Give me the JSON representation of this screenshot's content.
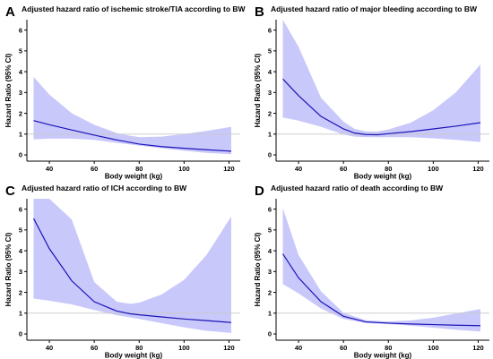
{
  "chart_data": [
    {
      "type": "line",
      "panel": "A",
      "title": "Adjusted hazard ratio of ischemic stroke/TIA according to BW",
      "xlabel": "Body weight (kg)",
      "ylabel": "Hazard Ratio (95% CI)",
      "xlim": [
        30,
        125
      ],
      "ylim": [
        -0.3,
        6.5
      ],
      "xticks": [
        40,
        60,
        80,
        100,
        120
      ],
      "yticks": [
        0,
        1,
        2,
        3,
        4,
        5,
        6
      ],
      "reference_line": 1,
      "x": [
        33,
        40,
        50,
        60,
        70,
        76,
        80,
        90,
        100,
        110,
        121
      ],
      "hr": [
        1.65,
        1.45,
        1.2,
        0.95,
        0.72,
        0.6,
        0.52,
        0.4,
        0.32,
        0.25,
        0.18
      ],
      "ci_lower": [
        0.75,
        0.78,
        0.78,
        0.72,
        0.58,
        0.5,
        0.45,
        0.32,
        0.2,
        0.1,
        0.03
      ],
      "ci_upper": [
        3.75,
        2.9,
        2.0,
        1.45,
        1.05,
        0.92,
        0.85,
        0.88,
        1.0,
        1.15,
        1.35
      ]
    },
    {
      "type": "line",
      "panel": "B",
      "title": "Adjusted hazard ratio of major bleeding according to BW",
      "xlabel": "Body weight (kg)",
      "ylabel": "Hazard Ratio (95% CI)",
      "xlim": [
        30,
        125
      ],
      "ylim": [
        -0.3,
        6.5
      ],
      "xticks": [
        40,
        60,
        80,
        100,
        120
      ],
      "yticks": [
        0,
        1,
        2,
        3,
        4,
        5,
        6
      ],
      "reference_line": 1,
      "x": [
        33,
        40,
        50,
        60,
        65,
        70,
        75,
        80,
        90,
        100,
        110,
        121
      ],
      "hr": [
        3.65,
        2.85,
        1.85,
        1.25,
        1.05,
        0.98,
        0.97,
        1.02,
        1.12,
        1.25,
        1.38,
        1.55
      ],
      "ci_lower": [
        1.8,
        1.65,
        1.35,
        0.98,
        0.88,
        0.85,
        0.85,
        0.85,
        0.85,
        0.8,
        0.72,
        0.62
      ],
      "ci_upper": [
        6.5,
        5.2,
        2.75,
        1.6,
        1.25,
        1.13,
        1.12,
        1.22,
        1.55,
        2.15,
        3.0,
        4.35
      ]
    },
    {
      "type": "line",
      "panel": "C",
      "title": "Adjusted hazard ratio of ICH according to BW",
      "xlabel": "Body weight (kg)",
      "ylabel": "Hazard Ratio (95% CI)",
      "xlim": [
        30,
        125
      ],
      "ylim": [
        -0.3,
        6.5
      ],
      "xticks": [
        40,
        60,
        80,
        100,
        120
      ],
      "yticks": [
        0,
        1,
        2,
        3,
        4,
        5,
        6
      ],
      "reference_line": 1,
      "x": [
        33,
        40,
        50,
        60,
        70,
        76,
        80,
        90,
        100,
        110,
        121
      ],
      "hr": [
        5.55,
        4.1,
        2.55,
        1.55,
        1.1,
        0.97,
        0.92,
        0.82,
        0.72,
        0.64,
        0.55
      ],
      "ci_lower": [
        1.7,
        1.6,
        1.42,
        1.15,
        0.9,
        0.8,
        0.72,
        0.52,
        0.32,
        0.15,
        0.05
      ],
      "ci_upper": [
        6.5,
        6.5,
        5.5,
        2.5,
        1.55,
        1.45,
        1.5,
        1.9,
        2.6,
        3.8,
        5.65
      ]
    },
    {
      "type": "line",
      "panel": "D",
      "title": "Adjusted hazard ratio of death according to BW",
      "xlabel": "Body weight (kg)",
      "ylabel": "Hazard Ratio (95% CI)",
      "xlim": [
        30,
        125
      ],
      "ylim": [
        -0.3,
        6.5
      ],
      "xticks": [
        40,
        60,
        80,
        100,
        120
      ],
      "yticks": [
        0,
        1,
        2,
        3,
        4,
        5,
        6
      ],
      "reference_line": 1,
      "x": [
        33,
        40,
        50,
        60,
        70,
        80,
        90,
        100,
        110,
        121
      ],
      "hr": [
        3.85,
        2.7,
        1.55,
        0.85,
        0.58,
        0.52,
        0.48,
        0.45,
        0.42,
        0.4
      ],
      "ci_lower": [
        2.4,
        1.95,
        1.22,
        0.72,
        0.52,
        0.47,
        0.4,
        0.3,
        0.2,
        0.12
      ],
      "ci_upper": [
        6.05,
        3.8,
        2.05,
        1.02,
        0.66,
        0.6,
        0.65,
        0.78,
        0.98,
        1.2
      ]
    }
  ]
}
